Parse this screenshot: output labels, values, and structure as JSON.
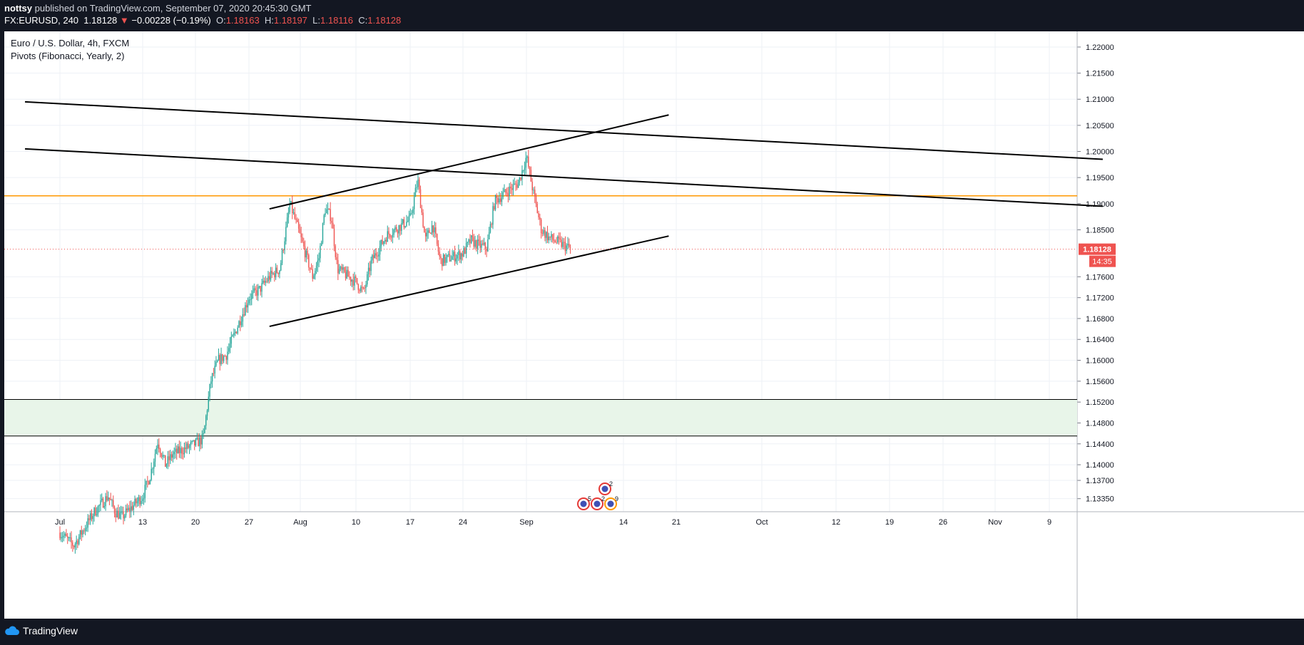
{
  "header": {
    "author": "nottsy",
    "published_text": "published on TradingView.com, September 07, 2020 20:45:30 GMT",
    "symbol": "FX:EURUSD, 240",
    "last": "1.18128",
    "arrow": "▼",
    "change": "−0.00228 (−0.19%)",
    "o_label": "O:",
    "o": "1.18163",
    "h_label": "H:",
    "h": "1.18197",
    "l_label": "L:",
    "l": "1.18116",
    "c_label": "C:",
    "c": "1.18128"
  },
  "legend": {
    "title": "Euro / U.S. Dollar, 4h, FXCM",
    "indicator": "Pivots (Fibonacci, Yearly, 2)"
  },
  "footer": {
    "brand": "TradingView"
  },
  "colors": {
    "up": "#26a69a",
    "down": "#ef5350",
    "pivot": "#ff9800",
    "zone_fill": "#e8f5e9",
    "grid": "#eef1f6",
    "text": "#131722"
  },
  "chart_data": {
    "type": "candlestick",
    "timeframe": "4h",
    "x_ticks": [
      "Jul",
      "13",
      "20",
      "27",
      "Aug",
      "10",
      "17",
      "24",
      "Sep",
      "14",
      "21",
      "Oct",
      "12",
      "19",
      "26",
      "Nov",
      "9"
    ],
    "y_ticks": [
      "1.22000",
      "1.21500",
      "1.21000",
      "1.20500",
      "1.20000",
      "1.19500",
      "1.19000",
      "1.18500",
      "1.17600",
      "1.17200",
      "1.16800",
      "1.16400",
      "1.16000",
      "1.15600",
      "1.15200",
      "1.14800",
      "1.14400",
      "1.14000",
      "1.13700",
      "1.13350"
    ],
    "y_range": [
      1.131,
      1.223
    ],
    "last_price": "1.18128",
    "countdown": "14:35",
    "pivot_level": 1.1915,
    "support_zone": [
      1.1455,
      1.1525
    ],
    "price_path": [
      [
        "2020-07-01",
        1.127
      ],
      [
        "2020-07-03",
        1.1245
      ],
      [
        "2020-07-06",
        1.131
      ],
      [
        "2020-07-08",
        1.134
      ],
      [
        "2020-07-09",
        1.131
      ],
      [
        "2020-07-10",
        1.13
      ],
      [
        "2020-07-13",
        1.134
      ],
      [
        "2020-07-14",
        1.138
      ],
      [
        "2020-07-15",
        1.1445
      ],
      [
        "2020-07-16",
        1.14
      ],
      [
        "2020-07-17",
        1.142
      ],
      [
        "2020-07-20",
        1.144
      ],
      [
        "2020-07-21",
        1.145
      ],
      [
        "2020-07-22",
        1.156
      ],
      [
        "2020-07-23",
        1.16
      ],
      [
        "2020-07-24",
        1.161
      ],
      [
        "2020-07-27",
        1.172
      ],
      [
        "2020-07-28",
        1.1735
      ],
      [
        "2020-07-29",
        1.176
      ],
      [
        "2020-07-30",
        1.1775
      ],
      [
        "2020-07-31",
        1.19
      ],
      [
        "2020-08-03",
        1.176
      ],
      [
        "2020-08-04",
        1.1795
      ],
      [
        "2020-08-05",
        1.189
      ],
      [
        "2020-08-06",
        1.1875
      ],
      [
        "2020-08-07",
        1.1775
      ],
      [
        "2020-08-10",
        1.175
      ],
      [
        "2020-08-11",
        1.173
      ],
      [
        "2020-08-12",
        1.179
      ],
      [
        "2020-08-13",
        1.1815
      ],
      [
        "2020-08-14",
        1.184
      ],
      [
        "2020-08-17",
        1.187
      ],
      [
        "2020-08-18",
        1.1945
      ],
      [
        "2020-08-19",
        1.183
      ],
      [
        "2020-08-20",
        1.186
      ],
      [
        "2020-08-21",
        1.179
      ],
      [
        "2020-08-24",
        1.1805
      ],
      [
        "2020-08-25",
        1.183
      ],
      [
        "2020-08-26",
        1.182
      ],
      [
        "2020-08-27",
        1.1815
      ],
      [
        "2020-08-28",
        1.1905
      ],
      [
        "2020-08-31",
        1.194
      ],
      [
        "2020-09-01",
        1.199
      ],
      [
        "2020-09-02",
        1.1915
      ],
      [
        "2020-09-03",
        1.185
      ],
      [
        "2020-09-04",
        1.1835
      ],
      [
        "2020-09-07",
        1.1813
      ]
    ],
    "trendlines": [
      {
        "from": [
          "2020-06-26",
          1.2095
        ],
        "to": [
          "2020-11-16",
          1.1985
        ]
      },
      {
        "from": [
          "2020-06-26",
          1.2005
        ],
        "to": [
          "2020-11-16",
          1.1895
        ]
      },
      {
        "from": [
          "2020-07-29",
          1.189
        ],
        "to": [
          "2020-09-20",
          1.207
        ]
      },
      {
        "from": [
          "2020-07-29",
          1.1665
        ],
        "to": [
          "2020-09-20",
          1.1838
        ]
      }
    ],
    "events": [
      {
        "date": "2020-09-08",
        "count": "2"
      },
      {
        "date": "2020-09-06",
        "count": "5"
      },
      {
        "date": "2020-09-08",
        "count": "2"
      },
      {
        "date": "2020-09-09",
        "count": "9"
      }
    ]
  }
}
